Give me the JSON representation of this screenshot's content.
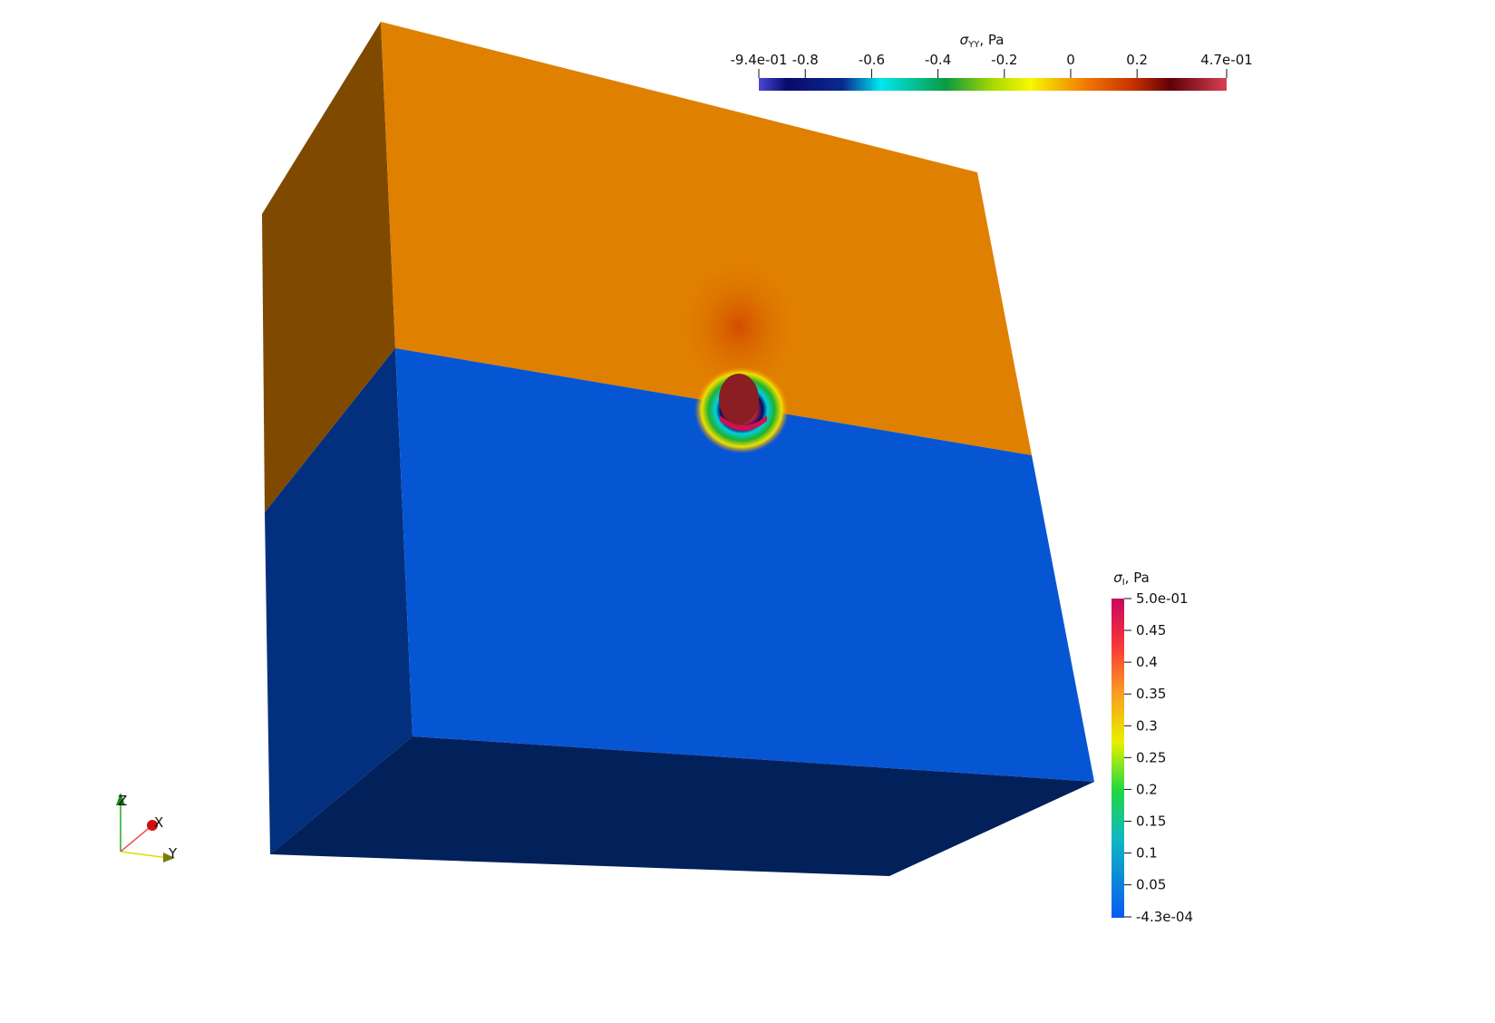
{
  "colorbars": [
    {
      "symbol": "σ",
      "subscript": "YY",
      "unit": ", Pa",
      "orientation": "horizontal",
      "lim": [
        -0.94,
        0.47
      ],
      "ticks": [
        {
          "value": -0.94,
          "label": "-9.4e-01"
        },
        -0.8,
        -0.6,
        -0.4,
        -0.2,
        0,
        0.2,
        {
          "value": 0.47,
          "label": "4.7e-01"
        }
      ]
    },
    {
      "symbol": "σ",
      "subscript": "I",
      "unit": ", Pa",
      "orientation": "vertical",
      "lim": [
        -0.00043,
        0.5
      ],
      "ticks": [
        {
          "value": 0.5,
          "label": "5.0e-01"
        },
        0.45,
        0.4,
        0.35,
        0.3,
        0.25,
        0.2,
        0.15,
        0.1,
        0.05,
        {
          "value": -0.00043,
          "label": "-4.3e-04"
        }
      ]
    }
  ],
  "axes_triad": {
    "z": "Z",
    "x": "X",
    "y": "Y"
  }
}
